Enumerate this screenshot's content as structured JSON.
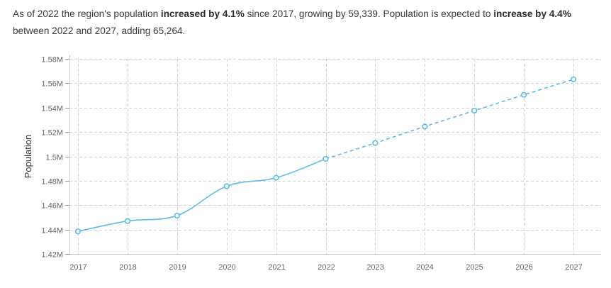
{
  "summary": {
    "p1": "As of 2022 the region's population ",
    "b1": "increased by 4.1%",
    "p2": " since 2017, growing by 59,339. Population is expected to ",
    "b2": "increase by 4.4%",
    "p3": " between 2022 and 2027, adding 65,264."
  },
  "colors": {
    "line": "#5bbbe8",
    "grid": "#d4d4d4",
    "axis": "#cccccc"
  },
  "chart_data": {
    "type": "line",
    "ylabel": "Population",
    "xlabel": "",
    "x": [
      "2017",
      "2018",
      "2019",
      "2020",
      "2021",
      "2022",
      "2023",
      "2024",
      "2025",
      "2026",
      "2027"
    ],
    "ylim": [
      1420000,
      1580000
    ],
    "yticks": [
      1420000,
      1440000,
      1460000,
      1480000,
      1500000,
      1520000,
      1540000,
      1560000,
      1580000
    ],
    "ytick_labels": [
      "1.42M",
      "1.44M",
      "1.46M",
      "1.48M",
      "1.5M",
      "1.52M",
      "1.54M",
      "1.56M",
      "1.58M"
    ],
    "grid": true,
    "series": [
      {
        "style": "solid",
        "x": [
          "2017",
          "2018",
          "2019",
          "2020",
          "2021",
          "2022"
        ],
        "values": [
          1438500,
          1447000,
          1451500,
          1475500,
          1482500,
          1498000
        ]
      },
      {
        "style": "dashed",
        "x": [
          "2022",
          "2023",
          "2024",
          "2025",
          "2026",
          "2027"
        ],
        "values": [
          1498000,
          1511000,
          1524500,
          1537500,
          1550500,
          1563200
        ]
      }
    ]
  }
}
